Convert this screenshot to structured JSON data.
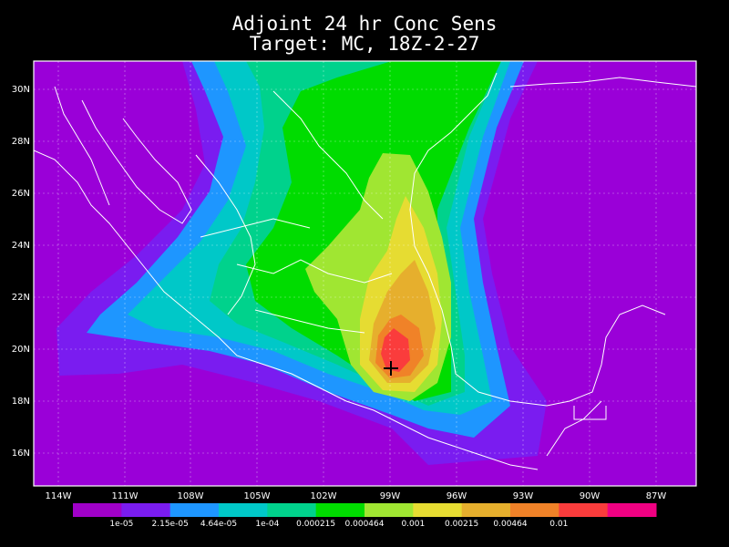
{
  "title": {
    "line1": "Adjoint 24 hr Conc Sens",
    "line2": "Target: MC, 18Z-2-27"
  },
  "map": {
    "lat_labels": [
      "30N",
      "28N",
      "26N",
      "24N",
      "22N",
      "20N",
      "18N",
      "16N"
    ],
    "lon_labels": [
      "114W",
      "111W",
      "108W",
      "105W",
      "102W",
      "99W",
      "96W",
      "93W",
      "90W",
      "87W"
    ],
    "target_marker": "cross-icon",
    "background_color": "#9a00d8",
    "coast_color": "#ffffff"
  },
  "colorbar": {
    "colors": [
      "#a000c8",
      "#7a1cf0",
      "#1e96ff",
      "#00c8c8",
      "#00d28c",
      "#00dc00",
      "#a0e632",
      "#e6dc32",
      "#e6af2d",
      "#f08228",
      "#fa3c3c",
      "#f00082"
    ],
    "labels": [
      "1e-05",
      "2.15e-05",
      "4.64e-05",
      "1e-04",
      "0.000215",
      "0.000464",
      "0.001",
      "0.00215",
      "0.00464",
      "0.01"
    ]
  }
}
